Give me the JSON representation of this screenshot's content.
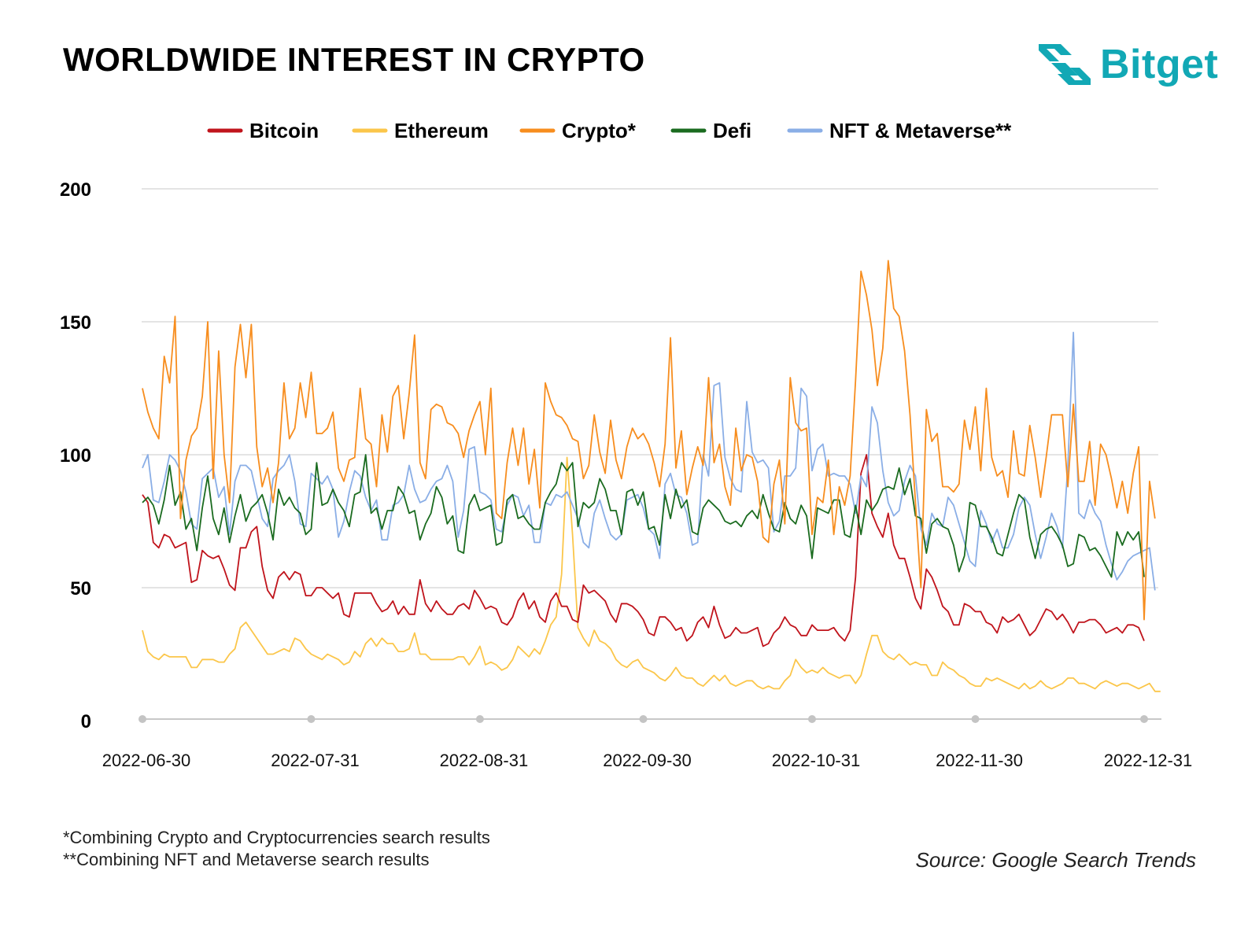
{
  "header": {
    "title": "WORLDWIDE INTEREST IN CRYPTO",
    "brand": "Bitget",
    "brand_color": "#12a8b5"
  },
  "footer": {
    "note1": "*Combining Crypto and Cryptocurrencies search results",
    "note2": "**Combining NFT and Metaverse search results",
    "source": "Source: Google Search Trends"
  },
  "chart_data": {
    "type": "line",
    "title": "WORLDWIDE INTEREST IN CRYPTO",
    "xlabel": "",
    "ylabel": "",
    "ylim": [
      0,
      200
    ],
    "yticks": [
      0,
      50,
      100,
      150,
      200
    ],
    "grid": true,
    "legend_position": "top",
    "x_tick_labels": [
      "2022-06-30",
      "2022-07-31",
      "2022-08-31",
      "2022-09-30",
      "2022-10-31",
      "2022-11-30",
      "2022-12-31"
    ],
    "x_tick_index": [
      0,
      31,
      62,
      92,
      123,
      153,
      184
    ],
    "series": [
      {
        "name": "Bitcoin",
        "color": "#c0141c",
        "values": [
          85,
          82,
          67,
          65,
          70,
          69,
          65,
          66,
          67,
          52,
          53,
          64,
          62,
          61,
          62,
          57,
          51,
          49,
          65,
          65,
          71,
          73,
          58,
          49,
          46,
          54,
          56,
          53,
          56,
          55,
          47,
          47,
          50,
          50,
          48,
          46,
          48,
          40,
          39,
          48,
          48,
          48,
          48,
          44,
          41,
          42,
          45,
          40,
          43,
          40,
          40,
          53,
          44,
          41,
          45,
          42,
          40,
          40,
          43,
          44,
          42,
          49,
          46,
          42,
          43,
          42,
          37,
          36,
          39,
          45,
          48,
          42,
          45,
          39,
          37,
          45,
          48,
          43,
          43,
          38,
          37,
          51,
          48,
          49,
          47,
          45,
          40,
          37,
          44,
          44,
          43,
          41,
          38,
          33,
          32,
          39,
          39,
          37,
          34,
          35,
          30,
          32,
          37,
          39,
          35,
          43,
          36,
          31,
          32,
          35,
          33,
          33,
          34,
          35,
          28,
          29,
          33,
          35,
          39,
          36,
          35,
          32,
          32,
          36,
          34,
          34,
          34,
          35,
          32,
          30,
          34,
          54,
          93,
          100,
          78,
          73,
          69,
          78,
          66,
          61,
          61,
          54,
          46,
          42,
          57,
          54,
          49,
          43,
          41,
          36,
          36,
          44,
          43,
          41,
          41,
          37,
          36,
          33,
          39,
          37,
          38,
          40,
          36,
          32,
          34,
          38,
          42,
          41,
          38,
          40,
          37,
          33,
          37,
          37,
          38,
          38,
          36,
          33,
          34,
          35,
          33,
          36,
          36,
          35,
          30
        ]
      },
      {
        "name": "Ethereum",
        "color": "#fbc64a",
        "values": [
          34,
          26,
          24,
          23,
          25,
          24,
          24,
          24,
          24,
          20,
          20,
          23,
          23,
          23,
          22,
          22,
          25,
          27,
          35,
          37,
          34,
          31,
          28,
          25,
          25,
          26,
          27,
          26,
          31,
          30,
          27,
          25,
          24,
          23,
          25,
          24,
          23,
          21,
          22,
          26,
          24,
          29,
          31,
          28,
          31,
          29,
          29,
          26,
          26,
          27,
          33,
          25,
          25,
          23,
          23,
          23,
          23,
          23,
          24,
          24,
          21,
          24,
          28,
          21,
          22,
          21,
          19,
          20,
          23,
          28,
          26,
          24,
          27,
          25,
          30,
          36,
          39,
          55,
          99,
          70,
          35,
          31,
          28,
          34,
          30,
          29,
          27,
          23,
          21,
          20,
          22,
          23,
          20,
          19,
          18,
          16,
          15,
          17,
          20,
          17,
          16,
          16,
          14,
          13,
          15,
          17,
          15,
          17,
          14,
          13,
          14,
          15,
          15,
          13,
          12,
          13,
          12,
          12,
          15,
          17,
          23,
          20,
          18,
          19,
          18,
          20,
          18,
          17,
          16,
          17,
          17,
          14,
          17,
          25,
          32,
          32,
          26,
          24,
          23,
          25,
          23,
          21,
          22,
          21,
          21,
          17,
          17,
          22,
          20,
          19,
          17,
          16,
          14,
          13,
          13,
          16,
          15,
          16,
          15,
          14,
          13,
          12,
          14,
          12,
          13,
          15,
          13,
          12,
          13,
          14,
          16,
          16,
          14,
          14,
          13,
          12,
          14,
          15,
          14,
          13,
          14,
          14,
          13,
          12,
          13,
          14,
          11,
          11
        ]
      },
      {
        "name": "Crypto*",
        "color": "#f78d1e",
        "values": [
          125,
          116,
          110,
          106,
          137,
          127,
          152,
          76,
          98,
          107,
          110,
          122,
          150,
          91,
          139,
          100,
          82,
          133,
          149,
          129,
          149,
          103,
          88,
          95,
          82,
          97,
          127,
          106,
          110,
          127,
          114,
          131,
          108,
          108,
          110,
          116,
          95,
          90,
          98,
          99,
          125,
          106,
          104,
          88,
          115,
          101,
          122,
          126,
          106,
          123,
          145,
          97,
          91,
          117,
          119,
          118,
          112,
          111,
          108,
          99,
          109,
          115,
          120,
          100,
          125,
          78,
          76,
          97,
          110,
          96,
          110,
          89,
          102,
          80,
          127,
          120,
          115,
          114,
          111,
          106,
          105,
          91,
          96,
          115,
          101,
          93,
          113,
          98,
          91,
          103,
          110,
          106,
          108,
          104,
          97,
          88,
          104,
          144,
          95,
          109,
          85,
          95,
          103,
          96,
          129,
          97,
          104,
          88,
          81,
          110,
          94,
          100,
          99,
          90,
          69,
          67,
          89,
          98,
          74,
          129,
          112,
          109,
          110,
          70,
          84,
          82,
          98,
          70,
          88,
          81,
          92,
          128,
          169,
          160,
          147,
          126,
          140,
          173,
          155,
          152,
          139,
          115,
          82,
          50,
          117,
          105,
          108,
          88,
          88,
          86,
          89,
          113,
          102,
          118,
          94,
          125,
          99,
          92,
          94,
          84,
          109,
          93,
          92,
          111,
          99,
          84,
          99,
          115,
          115,
          115,
          88,
          119,
          90,
          90,
          105,
          81,
          104,
          100,
          91,
          80,
          90,
          78,
          93,
          103,
          38,
          90,
          76
        ]
      },
      {
        "name": "Defi",
        "color": "#1a6b1f",
        "values": [
          82,
          84,
          81,
          74,
          83,
          96,
          81,
          86,
          72,
          76,
          64,
          80,
          92,
          76,
          70,
          80,
          67,
          77,
          85,
          75,
          80,
          82,
          85,
          78,
          68,
          87,
          81,
          84,
          80,
          78,
          70,
          72,
          97,
          81,
          82,
          87,
          82,
          79,
          73,
          85,
          86,
          100,
          78,
          80,
          72,
          79,
          79,
          88,
          85,
          78,
          79,
          68,
          74,
          78,
          88,
          84,
          74,
          77,
          64,
          63,
          81,
          85,
          79,
          80,
          81,
          66,
          67,
          83,
          85,
          76,
          77,
          74,
          72,
          72,
          82,
          86,
          89,
          97,
          94,
          97,
          73,
          82,
          80,
          82,
          91,
          87,
          79,
          79,
          70,
          86,
          87,
          81,
          86,
          72,
          73,
          66,
          85,
          76,
          87,
          80,
          83,
          71,
          70,
          80,
          83,
          81,
          79,
          75,
          74,
          75,
          73,
          77,
          79,
          76,
          85,
          78,
          72,
          71,
          82,
          76,
          74,
          81,
          77,
          61,
          80,
          79,
          78,
          83,
          83,
          70,
          69,
          81,
          70,
          83,
          79,
          82,
          87,
          88,
          87,
          95,
          85,
          91,
          77,
          76,
          63,
          74,
          76,
          73,
          72,
          66,
          56,
          62,
          82,
          81,
          73,
          73,
          69,
          63,
          62,
          70,
          78,
          85,
          83,
          69,
          61,
          70,
          72,
          73,
          70,
          66,
          58,
          59,
          70,
          69,
          64,
          65,
          62,
          58,
          54,
          71,
          66,
          71,
          68,
          71,
          54
        ]
      },
      {
        "name": "NFT & Metaverse**",
        "color": "#8aaee6",
        "values": [
          95,
          100,
          83,
          82,
          90,
          100,
          98,
          94,
          86,
          74,
          72,
          91,
          93,
          95,
          84,
          88,
          70,
          90,
          96,
          96,
          94,
          85,
          76,
          73,
          91,
          94,
          96,
          100,
          90,
          74,
          73,
          93,
          91,
          89,
          92,
          87,
          69,
          75,
          86,
          94,
          92,
          84,
          79,
          83,
          68,
          68,
          81,
          82,
          85,
          96,
          87,
          82,
          83,
          87,
          90,
          91,
          96,
          90,
          69,
          79,
          102,
          103,
          86,
          85,
          83,
          72,
          71,
          81,
          85,
          84,
          77,
          81,
          67,
          67,
          82,
          81,
          85,
          84,
          86,
          81,
          76,
          67,
          65,
          78,
          83,
          76,
          70,
          68,
          70,
          83,
          84,
          85,
          80,
          72,
          70,
          61,
          89,
          93,
          85,
          84,
          78,
          66,
          67,
          100,
          92,
          126,
          127,
          99,
          91,
          87,
          86,
          120,
          101,
          97,
          98,
          95,
          71,
          75,
          92,
          92,
          95,
          125,
          122,
          94,
          102,
          104,
          92,
          93,
          92,
          92,
          89,
          78,
          92,
          88,
          118,
          112,
          94,
          82,
          77,
          79,
          90,
          96,
          92,
          72,
          66,
          78,
          74,
          73,
          84,
          81,
          74,
          67,
          60,
          58,
          79,
          74,
          67,
          72,
          65,
          65,
          70,
          80,
          84,
          81,
          70,
          61,
          69,
          78,
          73,
          65,
          96,
          146,
          78,
          76,
          83,
          78,
          75,
          66,
          59,
          53,
          56,
          60,
          62,
          63,
          64,
          65,
          49
        ]
      }
    ]
  }
}
